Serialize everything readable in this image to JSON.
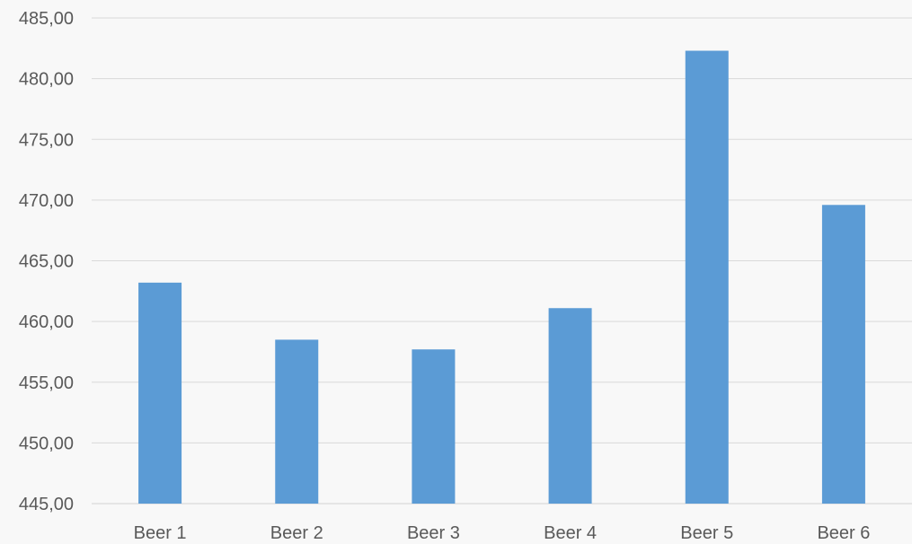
{
  "chart_data": {
    "type": "bar",
    "categories": [
      "Beer 1",
      "Beer 2",
      "Beer 3",
      "Beer 4",
      "Beer 5",
      "Beer 6"
    ],
    "values": [
      463.2,
      458.5,
      457.7,
      461.1,
      482.3,
      469.6
    ],
    "ylim": [
      445,
      485
    ],
    "ytick_step": 5,
    "ytick_labels": [
      "445,00",
      "450,00",
      "455,00",
      "460,00",
      "465,00",
      "470,00",
      "475,00",
      "480,00",
      "485,00"
    ],
    "grid": true,
    "legend": "none",
    "bar_color": "#5b9bd5",
    "title": "",
    "xlabel": "",
    "ylabel": ""
  }
}
